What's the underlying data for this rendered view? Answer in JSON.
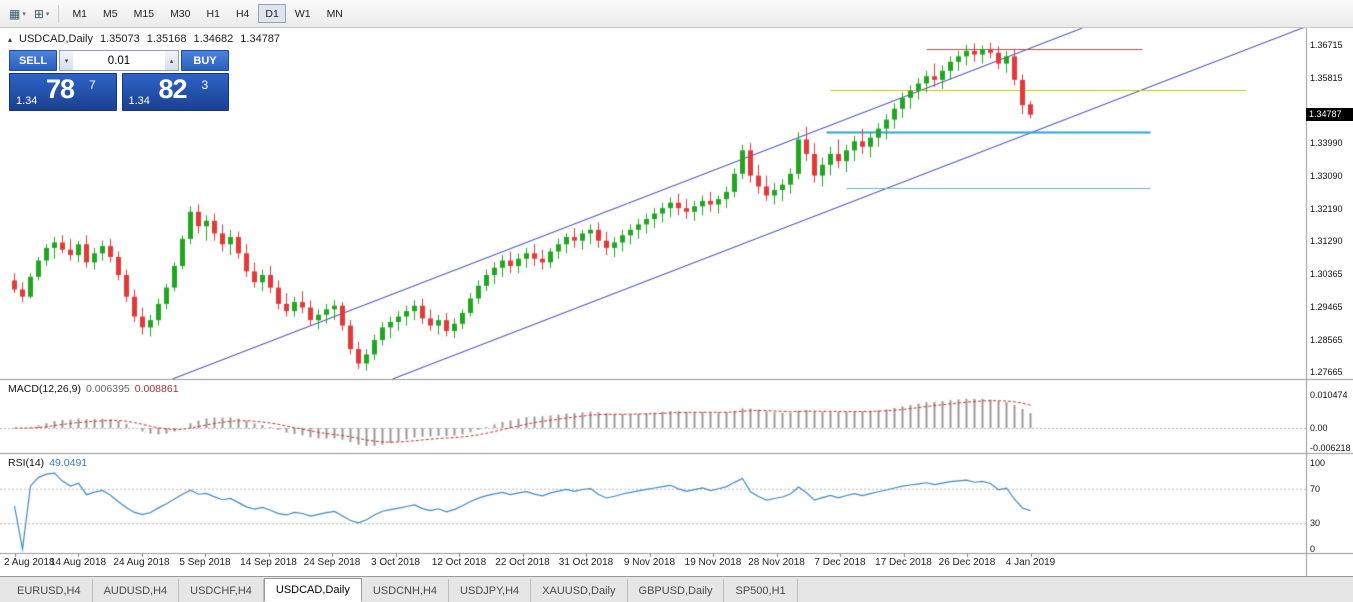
{
  "toolbar": {
    "timeframes": [
      "M1",
      "M5",
      "M15",
      "M30",
      "H1",
      "H4",
      "D1",
      "W1",
      "MN"
    ],
    "active_timeframe": "D1",
    "icons": [
      {
        "name": "chart-window-icon"
      },
      {
        "name": "indicators-menu-icon"
      }
    ]
  },
  "chart": {
    "symbol_period": "USDCAD,Daily",
    "ohlc": {
      "open": "1.35073",
      "high": "1.35168",
      "low": "1.34682",
      "close": "1.34787"
    },
    "price_tag": "1.34787",
    "y_axis_ticks": [
      "1.36715",
      "1.35815",
      "1.33990",
      "1.33090",
      "1.32190",
      "1.31290",
      "1.30365",
      "1.29465",
      "1.28565",
      "1.27665"
    ]
  },
  "trade_panel": {
    "sell_label": "SELL",
    "buy_label": "BUY",
    "volume": "0.01",
    "sell_price": {
      "prefix": "1.34",
      "main": "78",
      "pip": "7"
    },
    "buy_price": {
      "prefix": "1.34",
      "main": "82",
      "pip": "3"
    }
  },
  "macd_panel": {
    "name": "MACD(12,26,9)",
    "main_value": "0.006395",
    "signal_value": "0.008861",
    "y_axis_ticks": [
      "0.010474",
      "0.00",
      "-0.006218"
    ]
  },
  "rsi_panel": {
    "name": "RSI(14)",
    "value": "49.0491",
    "y_axis_ticks": [
      "100",
      "70",
      "30",
      "0"
    ]
  },
  "tabs": [
    {
      "label": "EURUSD,H4",
      "active": false
    },
    {
      "label": "AUDUSD,H4",
      "active": false
    },
    {
      "label": "USDCHF,H4",
      "active": false
    },
    {
      "label": "USDCAD,Daily",
      "active": true
    },
    {
      "label": "USDCNH,H4",
      "active": false
    },
    {
      "label": "USDJPY,H4",
      "active": false
    },
    {
      "label": "XAUUSD,Daily",
      "active": false
    },
    {
      "label": "GBPUSD,Daily",
      "active": false
    },
    {
      "label": "SP500,H1",
      "active": false
    }
  ],
  "chart_data": {
    "type": "candlestick",
    "title": "USDCAD,Daily",
    "x_labels": [
      "2 Aug 2018",
      "14 Aug 2018",
      "24 Aug 2018",
      "5 Sep 2018",
      "14 Sep 2018",
      "24 Sep 2018",
      "3 Oct 2018",
      "12 Oct 2018",
      "22 Oct 2018",
      "31 Oct 2018",
      "9 Nov 2018",
      "19 Nov 2018",
      "28 Nov 2018",
      "7 Dec 2018",
      "17 Dec 2018",
      "26 Dec 2018",
      "4 Jan 2019"
    ],
    "y_range": [
      1.27472,
      1.37185
    ],
    "current_ohlc": {
      "open": 1.35073,
      "high": 1.35168,
      "low": 1.34682,
      "close": 1.34787
    },
    "candles": [
      [
        1.302,
        1.304,
        1.2985,
        1.2995
      ],
      [
        1.2995,
        1.3015,
        1.296,
        1.2975
      ],
      [
        1.2975,
        1.304,
        1.297,
        1.303
      ],
      [
        1.303,
        1.3085,
        1.302,
        1.3075
      ],
      [
        1.3075,
        1.312,
        1.306,
        1.311
      ],
      [
        1.311,
        1.314,
        1.308,
        1.3125
      ],
      [
        1.3125,
        1.3145,
        1.3095,
        1.3105
      ],
      [
        1.3105,
        1.3135,
        1.3075,
        1.309
      ],
      [
        1.309,
        1.313,
        1.307,
        1.312
      ],
      [
        1.312,
        1.3145,
        1.3055,
        1.307
      ],
      [
        1.307,
        1.311,
        1.305,
        1.3095
      ],
      [
        1.3095,
        1.313,
        1.3075,
        1.3115
      ],
      [
        1.3115,
        1.3135,
        1.307,
        1.3085
      ],
      [
        1.3085,
        1.31,
        1.302,
        1.3035
      ],
      [
        1.3035,
        1.305,
        1.296,
        1.2975
      ],
      [
        1.2975,
        1.2995,
        1.2905,
        1.292
      ],
      [
        1.292,
        1.2945,
        1.287,
        1.289
      ],
      [
        1.289,
        1.2925,
        1.2865,
        1.291
      ],
      [
        1.291,
        1.297,
        1.2895,
        1.2955
      ],
      [
        1.2955,
        1.301,
        1.294,
        1.3
      ],
      [
        1.3,
        1.307,
        1.299,
        1.306
      ],
      [
        1.306,
        1.3145,
        1.305,
        1.3135
      ],
      [
        1.3135,
        1.3225,
        1.312,
        1.321
      ],
      [
        1.321,
        1.323,
        1.315,
        1.317
      ],
      [
        1.317,
        1.32,
        1.313,
        1.3185
      ],
      [
        1.3185,
        1.3205,
        1.313,
        1.315
      ],
      [
        1.315,
        1.3175,
        1.31,
        1.312
      ],
      [
        1.312,
        1.316,
        1.309,
        1.314
      ],
      [
        1.314,
        1.3155,
        1.308,
        1.3095
      ],
      [
        1.3095,
        1.312,
        1.303,
        1.3045
      ],
      [
        1.3045,
        1.307,
        1.3,
        1.3015
      ],
      [
        1.3015,
        1.305,
        1.299,
        1.3035
      ],
      [
        1.3035,
        1.306,
        1.2985,
        1.3
      ],
      [
        1.3,
        1.302,
        1.294,
        1.2955
      ],
      [
        1.2955,
        1.2985,
        1.292,
        1.2935
      ],
      [
        1.2935,
        1.2975,
        1.292,
        1.296
      ],
      [
        1.296,
        1.299,
        1.293,
        1.2945
      ],
      [
        1.2945,
        1.2965,
        1.2895,
        1.291
      ],
      [
        1.291,
        1.294,
        1.2885,
        1.2925
      ],
      [
        1.2925,
        1.2955,
        1.29,
        1.294
      ],
      [
        1.294,
        1.2965,
        1.291,
        1.295
      ],
      [
        1.295,
        1.296,
        1.288,
        1.2895
      ],
      [
        1.2895,
        1.291,
        1.2815,
        1.283
      ],
      [
        1.283,
        1.285,
        1.2775,
        1.279
      ],
      [
        1.279,
        1.283,
        1.277,
        1.2815
      ],
      [
        1.2815,
        1.287,
        1.28,
        1.2855
      ],
      [
        1.2855,
        1.2905,
        1.284,
        1.289
      ],
      [
        1.289,
        1.292,
        1.286,
        1.2905
      ],
      [
        1.2905,
        1.2935,
        1.288,
        1.292
      ],
      [
        1.292,
        1.295,
        1.2895,
        1.2935
      ],
      [
        1.2935,
        1.2965,
        1.291,
        1.295
      ],
      [
        1.295,
        1.297,
        1.29,
        1.2915
      ],
      [
        1.2915,
        1.294,
        1.288,
        1.2895
      ],
      [
        1.2895,
        1.2925,
        1.287,
        1.291
      ],
      [
        1.291,
        1.293,
        1.2865,
        1.288
      ],
      [
        1.288,
        1.2915,
        1.286,
        1.29
      ],
      [
        1.29,
        1.294,
        1.2885,
        1.293
      ],
      [
        1.293,
        1.2985,
        1.292,
        1.297
      ],
      [
        1.297,
        1.302,
        1.2955,
        1.3005
      ],
      [
        1.3005,
        1.305,
        1.299,
        1.3035
      ],
      [
        1.3035,
        1.307,
        1.301,
        1.3055
      ],
      [
        1.3055,
        1.309,
        1.303,
        1.3075
      ],
      [
        1.3075,
        1.31,
        1.304,
        1.306
      ],
      [
        1.306,
        1.3095,
        1.304,
        1.308
      ],
      [
        1.308,
        1.311,
        1.3055,
        1.3095
      ],
      [
        1.3095,
        1.312,
        1.306,
        1.308
      ],
      [
        1.308,
        1.3105,
        1.305,
        1.307
      ],
      [
        1.307,
        1.311,
        1.3055,
        1.31
      ],
      [
        1.31,
        1.3135,
        1.308,
        1.312
      ],
      [
        1.312,
        1.315,
        1.3095,
        1.314
      ],
      [
        1.314,
        1.3165,
        1.311,
        1.313
      ],
      [
        1.313,
        1.316,
        1.3105,
        1.315
      ],
      [
        1.315,
        1.3175,
        1.312,
        1.316
      ],
      [
        1.316,
        1.318,
        1.311,
        1.313
      ],
      [
        1.313,
        1.3155,
        1.309,
        1.311
      ],
      [
        1.311,
        1.314,
        1.3085,
        1.3125
      ],
      [
        1.3125,
        1.316,
        1.31,
        1.3145
      ],
      [
        1.3145,
        1.3175,
        1.312,
        1.316
      ],
      [
        1.316,
        1.319,
        1.3135,
        1.3175
      ],
      [
        1.3175,
        1.3205,
        1.315,
        1.319
      ],
      [
        1.319,
        1.322,
        1.3165,
        1.3205
      ],
      [
        1.3205,
        1.3235,
        1.318,
        1.322
      ],
      [
        1.322,
        1.325,
        1.3195,
        1.3235
      ],
      [
        1.3235,
        1.326,
        1.32,
        1.322
      ],
      [
        1.322,
        1.3245,
        1.319,
        1.321
      ],
      [
        1.321,
        1.324,
        1.3185,
        1.3225
      ],
      [
        1.3225,
        1.3255,
        1.32,
        1.324
      ],
      [
        1.324,
        1.3265,
        1.321,
        1.323
      ],
      [
        1.323,
        1.3255,
        1.3205,
        1.3245
      ],
      [
        1.3245,
        1.328,
        1.322,
        1.3265
      ],
      [
        1.3265,
        1.333,
        1.325,
        1.3315
      ],
      [
        1.3315,
        1.3395,
        1.33,
        1.338
      ],
      [
        1.338,
        1.34,
        1.329,
        1.331
      ],
      [
        1.331,
        1.334,
        1.326,
        1.328
      ],
      [
        1.328,
        1.331,
        1.324,
        1.3255
      ],
      [
        1.3255,
        1.329,
        1.323,
        1.327
      ],
      [
        1.327,
        1.33,
        1.324,
        1.3285
      ],
      [
        1.3285,
        1.333,
        1.326,
        1.3315
      ],
      [
        1.3315,
        1.343,
        1.33,
        1.341
      ],
      [
        1.341,
        1.3445,
        1.335,
        1.337
      ],
      [
        1.337,
        1.34,
        1.329,
        1.331
      ],
      [
        1.331,
        1.336,
        1.328,
        1.334
      ],
      [
        1.334,
        1.339,
        1.331,
        1.337
      ],
      [
        1.337,
        1.341,
        1.333,
        1.335
      ],
      [
        1.335,
        1.3395,
        1.332,
        1.338
      ],
      [
        1.338,
        1.342,
        1.335,
        1.3405
      ],
      [
        1.3405,
        1.344,
        1.337,
        1.339
      ],
      [
        1.339,
        1.343,
        1.336,
        1.3415
      ],
      [
        1.3415,
        1.3455,
        1.339,
        1.344
      ],
      [
        1.344,
        1.348,
        1.341,
        1.3465
      ],
      [
        1.3465,
        1.351,
        1.344,
        1.3495
      ],
      [
        1.3495,
        1.354,
        1.347,
        1.3525
      ],
      [
        1.3525,
        1.356,
        1.3495,
        1.3545
      ],
      [
        1.3545,
        1.358,
        1.352,
        1.3565
      ],
      [
        1.3565,
        1.36,
        1.354,
        1.3585
      ],
      [
        1.3585,
        1.362,
        1.3555,
        1.3575
      ],
      [
        1.3575,
        1.3615,
        1.355,
        1.36
      ],
      [
        1.36,
        1.364,
        1.3575,
        1.3625
      ],
      [
        1.3625,
        1.3655,
        1.36,
        1.364
      ],
      [
        1.364,
        1.3672,
        1.3615,
        1.3655
      ],
      [
        1.3655,
        1.3676,
        1.3625,
        1.3645
      ],
      [
        1.3645,
        1.367,
        1.362,
        1.366
      ],
      [
        1.366,
        1.3678,
        1.3635,
        1.365
      ],
      [
        1.365,
        1.3668,
        1.3605,
        1.362
      ],
      [
        1.362,
        1.3655,
        1.3595,
        1.364
      ],
      [
        1.364,
        1.366,
        1.356,
        1.3575
      ],
      [
        1.3575,
        1.359,
        1.348,
        1.3505
      ],
      [
        1.35073,
        1.35168,
        1.34682,
        1.34787
      ]
    ],
    "overlays": {
      "channel_lines": [
        {
          "from": {
            "index": 19.75,
            "price": 1.27472
          },
          "to": {
            "index": 133.5,
            "price": 1.37185
          }
        },
        {
          "from": {
            "index": 47.25,
            "price": 1.27472
          },
          "to": {
            "index": 167.6,
            "price": 1.3775
          }
        }
      ],
      "horizontal_lines": [
        {
          "price": 1.366,
          "from_index": 114,
          "to_index": 141,
          "color": "#b05050",
          "width": 1
        },
        {
          "price": 1.3548,
          "from_index": 102,
          "to_index": 154,
          "color": "#c8c800",
          "width": 1
        },
        {
          "price": 1.343,
          "from_index": 101.5,
          "to_index": 142,
          "color": "#2f9fd6",
          "width": 2
        },
        {
          "price": 1.3275,
          "from_index": 104,
          "to_index": 142,
          "color": "#5fb4d4",
          "width": 1
        }
      ]
    },
    "indicators": {
      "macd": {
        "params": [
          12,
          26,
          9
        ],
        "current_main": 0.006395,
        "current_signal": 0.008861,
        "axis_ticks": [
          0.010474,
          0.0,
          -0.006218
        ]
      },
      "rsi": {
        "params": [
          14
        ],
        "current": 49.0491,
        "levels": [
          70,
          30
        ],
        "axis_ticks": [
          100,
          70,
          30,
          0
        ]
      }
    },
    "colors": {
      "bull": "#21a621",
      "bear": "#e23a3a",
      "channel": "#3b43b8",
      "macd_histogram": "#999999",
      "macd_signal": "#cc2e2e",
      "rsi_line": "#3f87c9",
      "grid_dotted": "#bbbbbb",
      "price_tag_bg": "#000000"
    }
  }
}
